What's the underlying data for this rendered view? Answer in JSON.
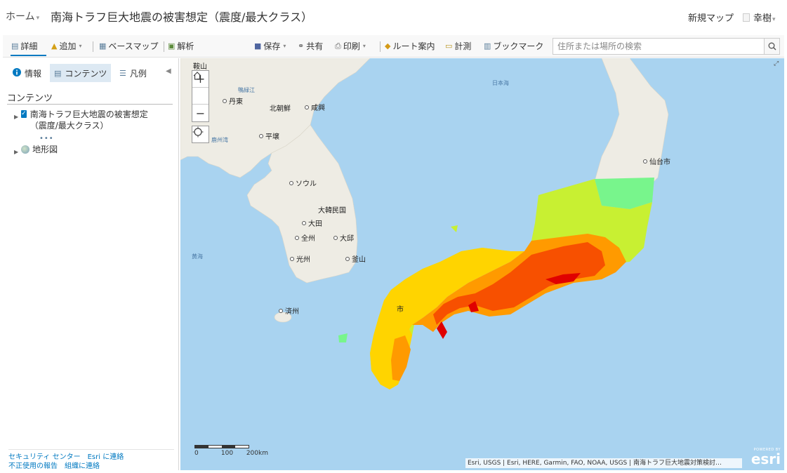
{
  "header": {
    "home_label": "ホーム",
    "title": "南海トラフ巨大地震の被害想定（震度/最大クラス）",
    "new_map": "新規マップ",
    "user": "幸樹"
  },
  "toolbar": {
    "details": "詳細",
    "add": "追加",
    "basemap": "ベースマップ",
    "analysis": "解析",
    "save": "保存",
    "share": "共有",
    "print": "印刷",
    "directions": "ルート案内",
    "measure": "計測",
    "bookmarks": "ブックマーク",
    "search_placeholder": "住所または場所の検索"
  },
  "panel": {
    "tabs": [
      "情報",
      "コンテンツ",
      "凡例"
    ],
    "active_tab": "コンテンツ",
    "heading": "コンテンツ",
    "layers": [
      {
        "name": "南海トラフ巨大地震の被害想定（震度/最大クラス）",
        "checked": true
      },
      {
        "name": "地形図"
      }
    ],
    "footer": {
      "security": "セキュリティ センター",
      "contact_esri": "Esri に連絡",
      "report_abuse": "不正使用の報告",
      "contact_org": "組織に連絡"
    }
  },
  "map": {
    "labels": {
      "chikyu_ejiang": "鞍山",
      "dandong": "丹東",
      "north_korea": "北朝鮮",
      "hamhung": "咸興",
      "pyongyang": "平壌",
      "bohai": "鹿州湾",
      "seoul": "ソウル",
      "south_korea": "大韓民国",
      "daejeon": "大田",
      "jeonju": "全州",
      "daegu": "大邱",
      "gwangju": "光州",
      "busan": "釜山",
      "jeju": "済州",
      "yellow_sea": "黄海",
      "sea_of_japan": "日本海",
      "sendai": "仙台市",
      "city_partial": "市",
      "yalu": "鴨緑江"
    },
    "scale": {
      "ticks": [
        "0",
        "100",
        "200km"
      ]
    },
    "attribution": "Esri, USGS | Esri, HERE, Garmin, FAO, NOAA, USGS | 南海トラフ巨大地震対策検討…",
    "logo_powered": "POWERED BY",
    "logo": "esri"
  },
  "colors": {
    "accent": "#0079c1",
    "intensity_7": "#e00000",
    "intensity_6_upper": "#f75000",
    "intensity_6_lower": "#ff9a00",
    "intensity_5_upper": "#ffd400",
    "intensity_5_lower": "#c8f032",
    "intensity_4": "#78f58c"
  }
}
